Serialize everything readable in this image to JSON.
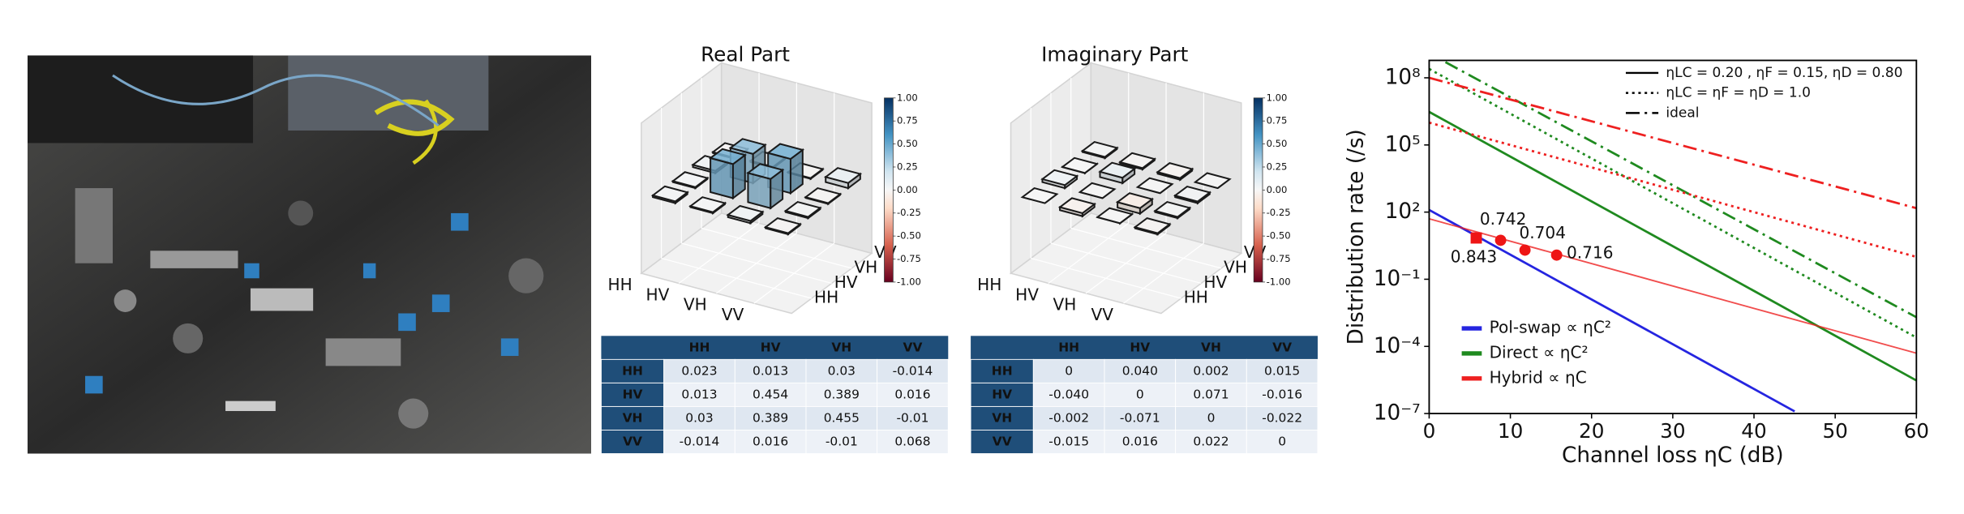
{
  "chart_data": [
    {
      "type": "bar3d",
      "title": "Real Part",
      "categories": [
        "HH",
        "HV",
        "VH",
        "VV"
      ],
      "values": [
        [
          0.023,
          0.013,
          0.03,
          -0.014
        ],
        [
          0.013,
          0.454,
          0.389,
          0.016
        ],
        [
          0.03,
          0.389,
          0.455,
          -0.01
        ],
        [
          -0.014,
          0.016,
          -0.01,
          0.068
        ]
      ],
      "value_labels": [
        [
          "0.023",
          "0.013",
          "0.03",
          "-0.014"
        ],
        [
          "0.013",
          "0.454",
          "0.389",
          "0.016"
        ],
        [
          "0.03",
          "0.389",
          "0.455",
          "-0.01"
        ],
        [
          "-0.014",
          "0.016",
          "-0.01",
          "0.068"
        ]
      ],
      "clim": [
        -1,
        1
      ],
      "colormap": "RdBu",
      "cticks": [
        {
          "value": 1,
          "label": "1.00"
        },
        {
          "value": 0.75,
          "label": "0.75"
        },
        {
          "value": 0.5,
          "label": "0.50"
        },
        {
          "value": 0.25,
          "label": "0.25"
        },
        {
          "value": 0,
          "label": "0.00"
        },
        {
          "value": -0.25,
          "label": "-0.25"
        },
        {
          "value": -0.5,
          "label": "-0.50"
        },
        {
          "value": -0.75,
          "label": "-0.75"
        },
        {
          "value": -1,
          "label": "-1.00"
        }
      ]
    },
    {
      "type": "bar3d",
      "title": "Imaginary Part",
      "categories": [
        "HH",
        "HV",
        "VH",
        "VV"
      ],
      "values": [
        [
          0,
          0.04,
          0.002,
          0.015
        ],
        [
          -0.04,
          0,
          0.071,
          -0.016
        ],
        [
          -0.002,
          -0.071,
          0,
          -0.022
        ],
        [
          -0.015,
          0.016,
          0.022,
          0
        ]
      ],
      "value_labels": [
        [
          "0",
          "0.040",
          "0.002",
          "0.015"
        ],
        [
          "-0.040",
          "0",
          "0.071",
          "-0.016"
        ],
        [
          "-0.002",
          "-0.071",
          "0",
          "-0.022"
        ],
        [
          "-0.015",
          "0.016",
          "0.022",
          "0"
        ]
      ],
      "clim": [
        -1,
        1
      ],
      "colormap": "RdBu",
      "cticks": [
        {
          "value": 1,
          "label": "1.00"
        },
        {
          "value": 0.75,
          "label": "0.75"
        },
        {
          "value": 0.5,
          "label": "0.50"
        },
        {
          "value": 0.25,
          "label": "0.25"
        },
        {
          "value": 0,
          "label": "0.00"
        },
        {
          "value": -0.25,
          "label": "-0.25"
        },
        {
          "value": -0.5,
          "label": "-0.50"
        },
        {
          "value": -0.75,
          "label": "-0.75"
        },
        {
          "value": -1,
          "label": "-1.00"
        }
      ]
    },
    {
      "type": "line",
      "x_label": "Channel loss ηC (dB)",
      "y_label": "Distribution rate (/s)",
      "xlim": [
        0,
        60
      ],
      "xticks": [
        0,
        10,
        20,
        30,
        40,
        50,
        60
      ],
      "yscale": "log",
      "ylim": [
        1e-07,
        600000000.0
      ],
      "yticks": [
        {
          "value": 1e-07,
          "label": "10⁻⁷"
        },
        {
          "value": 0.0001,
          "label": "10⁻⁴"
        },
        {
          "value": 0.1,
          "label": "10⁻¹"
        },
        {
          "value": 100,
          "label": "10²"
        },
        {
          "value": 100000,
          "label": "10⁵"
        },
        {
          "value": 100000000,
          "label": "10⁸"
        }
      ],
      "styles": [
        {
          "name": "ηLC = 0.20 , ηF = 0.15, ηD = 0.80",
          "dash": "solid"
        },
        {
          "name": "ηLC = ηF = ηD = 1.0",
          "dash": "dotted"
        },
        {
          "name": "ideal",
          "dash": "dashdot"
        }
      ],
      "styles_legend": "upper right",
      "legend": "lower left",
      "series": [
        {
          "name": "Pol-swap ∝ ηC²",
          "color": "#2525e0",
          "lines": [
            {
              "style": 0,
              "x": [
                0,
                45
              ],
              "values": [
                125,
                1.25e-07
              ]
            }
          ]
        },
        {
          "name": "Direct ∝ ηC²",
          "color": "#1f8a1f",
          "lines": [
            {
              "style": 0,
              "x": [
                0,
                60
              ],
              "values": [
                3000000,
                3e-06
              ]
            },
            {
              "style": 1,
              "x": [
                0,
                60
              ],
              "values": [
                250000000,
                0.00025
              ]
            },
            {
              "style": 2,
              "x": [
                2,
                60
              ],
              "values": [
                500000000,
                0.002
              ]
            }
          ]
        },
        {
          "name": "Hybrid ∝ ηC",
          "color": "#ee2020",
          "lines": [
            {
              "style": 0,
              "x": [
                0,
                60
              ],
              "values": [
                50,
                5e-05
              ]
            },
            {
              "style": 1,
              "x": [
                0,
                60
              ],
              "values": [
                1000000,
                1
              ]
            },
            {
              "style": 2,
              "x": [
                0,
                60
              ],
              "values": [
                100000000,
                150
              ]
            }
          ]
        }
      ],
      "points": {
        "color": "#ee1515",
        "x": [
          5.8,
          8.8,
          11.8,
          15.7
        ],
        "values": [
          7,
          5.5,
          2,
          1.2
        ],
        "labels": [
          "0.843",
          "0.742",
          "0.704",
          "0.716"
        ],
        "markers": [
          "square",
          "circle",
          "circle",
          "circle"
        ]
      }
    }
  ]
}
